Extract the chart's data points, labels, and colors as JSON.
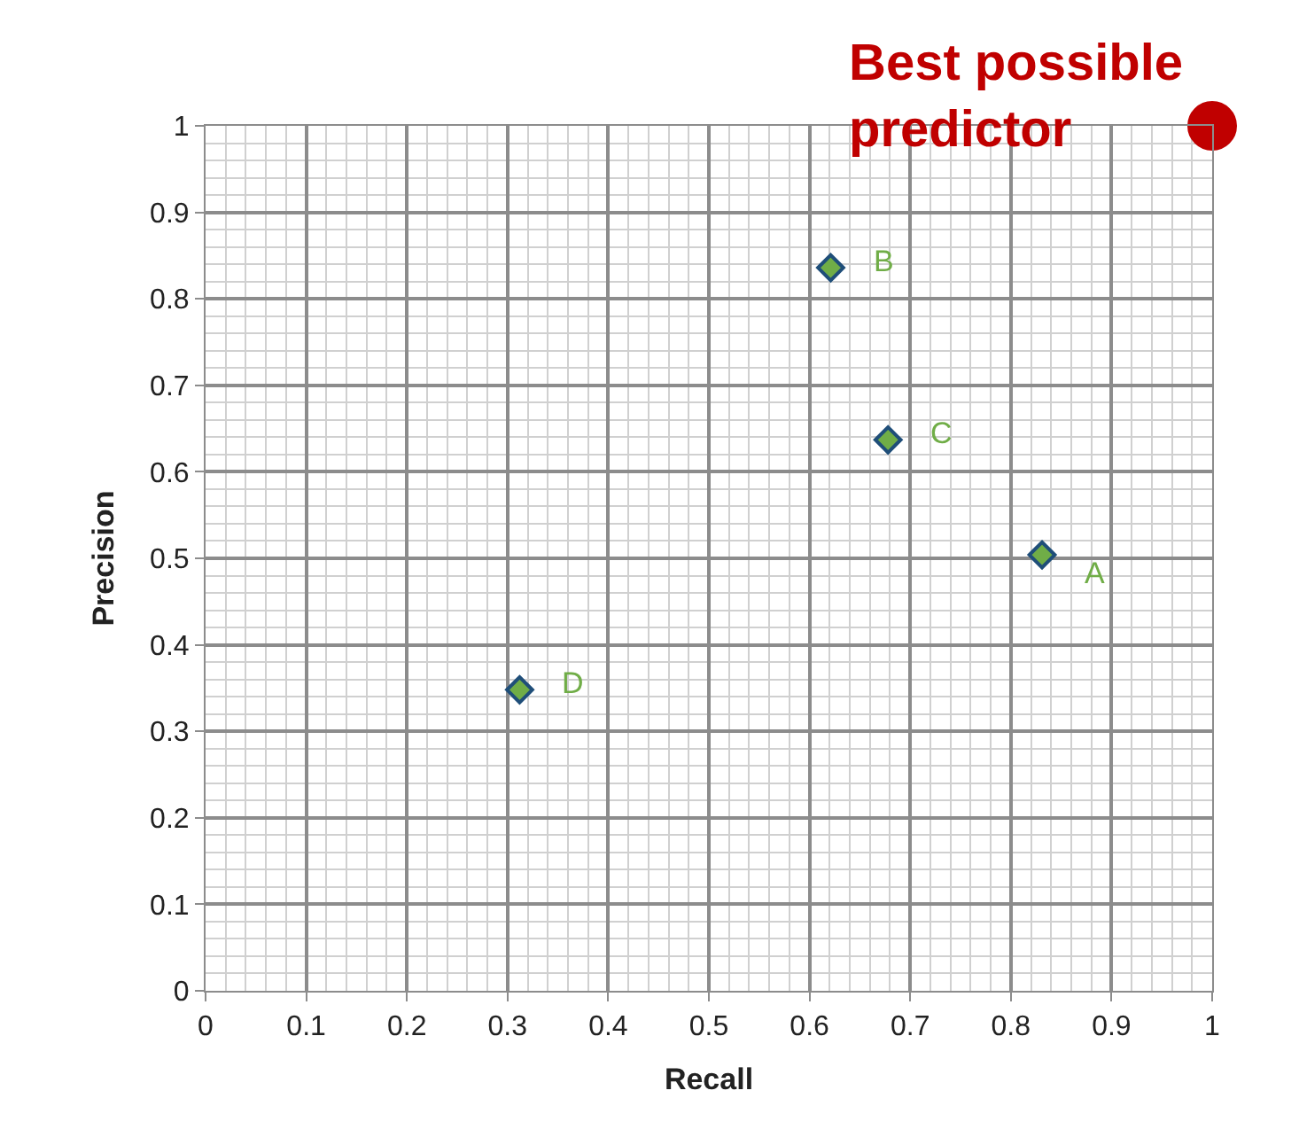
{
  "chart_data": {
    "type": "scatter",
    "xlabel": "Recall",
    "ylabel": "Precision",
    "xlim": [
      0,
      1
    ],
    "ylim": [
      0,
      1
    ],
    "xticks": [
      0,
      0.1,
      0.2,
      0.3,
      0.4,
      0.5,
      0.6,
      0.7,
      0.8,
      0.9,
      1
    ],
    "yticks": [
      0,
      0.1,
      0.2,
      0.3,
      0.4,
      0.5,
      0.6,
      0.7,
      0.8,
      0.9,
      1
    ],
    "grid": true,
    "series": [
      {
        "color": "#70ad47",
        "marker": "diamond",
        "x": [
          0.831,
          0.621,
          0.678,
          0.312
        ],
        "values": [
          0.504,
          0.836,
          0.637,
          0.348
        ]
      },
      {
        "color": "#c00000",
        "marker": "circle",
        "x": [
          1
        ],
        "values": [
          1
        ]
      }
    ],
    "annotations": [
      {
        "text": "A",
        "x": 0.831,
        "y": 0.504
      },
      {
        "text": "B",
        "x": 0.621,
        "y": 0.836
      },
      {
        "text": "C",
        "x": 0.678,
        "y": 0.637
      },
      {
        "text": "D",
        "x": 0.312,
        "y": 0.348
      },
      {
        "text": "Best possible predictor",
        "x": 1,
        "y": 1
      }
    ]
  }
}
